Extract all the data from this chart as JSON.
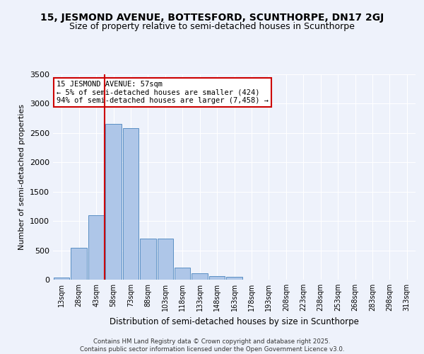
{
  "title": "15, JESMOND AVENUE, BOTTESFORD, SCUNTHORPE, DN17 2GJ",
  "subtitle": "Size of property relative to semi-detached houses in Scunthorpe",
  "xlabel": "Distribution of semi-detached houses by size in Scunthorpe",
  "ylabel": "Number of semi-detached properties",
  "bin_labels": [
    "13sqm",
    "28sqm",
    "43sqm",
    "58sqm",
    "73sqm",
    "88sqm",
    "103sqm",
    "118sqm",
    "133sqm",
    "148sqm",
    "163sqm",
    "178sqm",
    "193sqm",
    "208sqm",
    "223sqm",
    "238sqm",
    "253sqm",
    "268sqm",
    "283sqm",
    "298sqm",
    "313sqm"
  ],
  "bin_values": [
    40,
    540,
    1100,
    2650,
    2580,
    700,
    700,
    200,
    110,
    55,
    50,
    0,
    0,
    0,
    0,
    0,
    0,
    0,
    0,
    0,
    0
  ],
  "bar_color": "#aec6e8",
  "bar_edge_color": "#5a8fc4",
  "annotation_line1": "15 JESMOND AVENUE: 57sqm",
  "annotation_line2": "← 5% of semi-detached houses are smaller (424)",
  "annotation_line3": "94% of semi-detached houses are larger (7,458) →",
  "annotation_box_color": "#ffffff",
  "annotation_box_edge_color": "#cc0000",
  "vline_color": "#cc0000",
  "ylim": [
    0,
    3500
  ],
  "yticks": [
    0,
    500,
    1000,
    1500,
    2000,
    2500,
    3000,
    3500
  ],
  "footer_text": "Contains HM Land Registry data © Crown copyright and database right 2025.\nContains public sector information licensed under the Open Government Licence v3.0.",
  "bg_color": "#eef2fb",
  "title_fontsize": 10,
  "subtitle_fontsize": 9
}
